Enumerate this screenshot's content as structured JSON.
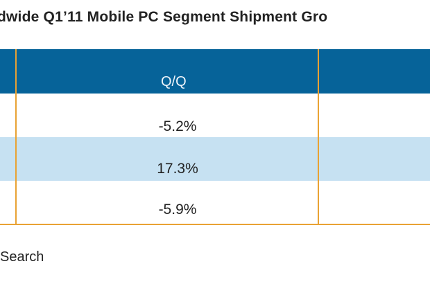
{
  "title": "dwide Q1’11 Mobile PC Segment Shipment Gro",
  "table": {
    "headers": [
      "Q/Q"
    ],
    "rows": [
      {
        "qq": "-5.2%"
      },
      {
        "qq": "17.3%"
      },
      {
        "qq": "-5.9%"
      }
    ]
  },
  "source": "Search",
  "colors": {
    "header": "#066399",
    "alt_row": "#c6e1f2",
    "border": "#e9a233"
  }
}
